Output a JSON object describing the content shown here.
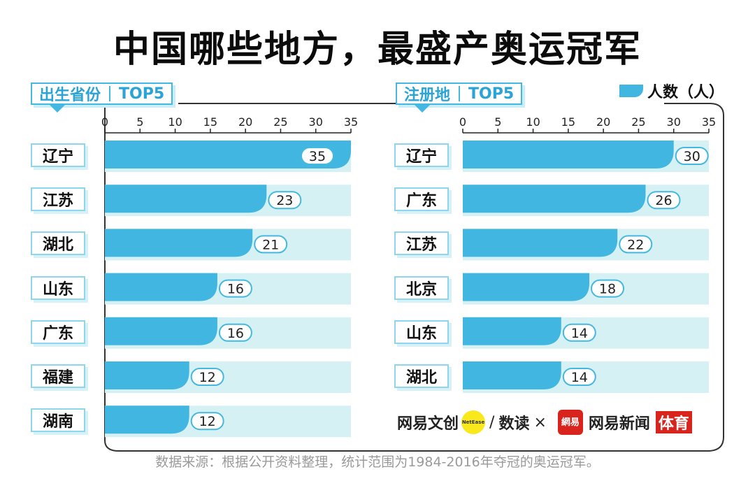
{
  "title": "中国哪些地方，最盛产奥运冠军",
  "legend": {
    "label": "人数（人）",
    "color": "#41b6e0"
  },
  "source": "数据来源：根据公开资料整理，统计范围为1984-2016年夺冠的奥运冠军。",
  "brand": {
    "part1": "网易文创",
    "dot_text": "NetEase",
    "slash": "/",
    "part2": "数读",
    "times": "×",
    "logo_text": "網易",
    "part3": "网易新闻",
    "sport": "体育"
  },
  "colors": {
    "bar": "#41b6e0",
    "track": "#d6f1f4",
    "label_border": "#44b8e0"
  },
  "chart_data": [
    {
      "type": "bar",
      "orientation": "horizontal",
      "panel_label": "出生省份",
      "panel_suffix": "TOP5",
      "categories": [
        "辽宁",
        "江苏",
        "湖北",
        "山东",
        "广东",
        "福建",
        "湖南"
      ],
      "values": [
        35,
        23,
        21,
        16,
        16,
        12,
        12
      ],
      "xlim": [
        0,
        35
      ],
      "ticks": [
        0,
        5,
        10,
        15,
        20,
        25,
        30,
        35
      ]
    },
    {
      "type": "bar",
      "orientation": "horizontal",
      "panel_label": "注册地",
      "panel_suffix": "TOP5",
      "categories": [
        "辽宁",
        "广东",
        "江苏",
        "北京",
        "山东",
        "湖北"
      ],
      "values": [
        30,
        26,
        22,
        18,
        14,
        14
      ],
      "xlim": [
        0,
        35
      ],
      "ticks": [
        0,
        5,
        10,
        15,
        20,
        25,
        30,
        35
      ]
    }
  ]
}
